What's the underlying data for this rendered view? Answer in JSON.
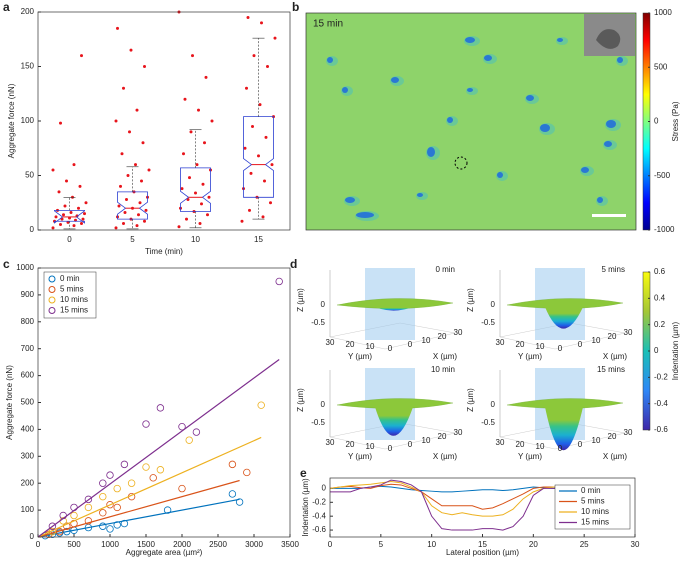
{
  "chart_data": [
    {
      "type": "box",
      "panel_label": "a",
      "ylabel": "Aggregate force (nN)",
      "xlabel": "Time (min)",
      "categories": [
        "0",
        "5",
        "10",
        "15"
      ],
      "ylim": [
        0,
        200
      ],
      "yticks": [
        0,
        50,
        100,
        150,
        200
      ],
      "boxes": [
        {
          "q1": 8,
          "median": 12,
          "q3": 18,
          "low": 1,
          "high": 30
        },
        {
          "q1": 10,
          "median": 20,
          "q3": 35,
          "low": 1,
          "high": 58
        },
        {
          "q1": 17,
          "median": 30,
          "q3": 57,
          "low": 2,
          "high": 92
        },
        {
          "q1": 30,
          "median": 60,
          "q3": 104,
          "low": 10,
          "high": 176
        }
      ],
      "points": [
        [
          2,
          4,
          5,
          6,
          7,
          8,
          9,
          10,
          10,
          11,
          12,
          13,
          14,
          15,
          16,
          18,
          20,
          22,
          25,
          30,
          35,
          40,
          45,
          55,
          60,
          98,
          160
        ],
        [
          2,
          4,
          6,
          8,
          10,
          12,
          14,
          16,
          18,
          20,
          22,
          25,
          28,
          30,
          35,
          40,
          45,
          50,
          55,
          60,
          70,
          80,
          90,
          100,
          110,
          130,
          150,
          165,
          185
        ],
        [
          3,
          6,
          10,
          14,
          17,
          20,
          24,
          28,
          30,
          34,
          38,
          42,
          48,
          55,
          60,
          70,
          80,
          90,
          100,
          110,
          120,
          140,
          160,
          200
        ],
        [
          8,
          12,
          18,
          25,
          30,
          38,
          45,
          52,
          60,
          68,
          75,
          85,
          95,
          104,
          115,
          130,
          150,
          160,
          176,
          190,
          195
        ]
      ],
      "color": "#e8141b",
      "box_color": "#2b3ed1"
    },
    {
      "type": "heatmap",
      "panel_label": "b",
      "label": "15 min",
      "colorbar_label": "Stress (Pa)",
      "clim": [
        -1000,
        1000
      ],
      "cticks": [
        -1000,
        -500,
        0,
        500,
        1000
      ]
    },
    {
      "type": "scatter",
      "panel_label": "c",
      "xlabel": "Aggregate area (µm²)",
      "ylabel": "Aggregate force (nN)",
      "xlim": [
        0,
        3500
      ],
      "ylim": [
        0,
        1000
      ],
      "xticks": [
        0,
        500,
        1000,
        1500,
        2000,
        2500,
        3000,
        3500
      ],
      "yticks": [
        0,
        100,
        200,
        300,
        400,
        500,
        600,
        700,
        800,
        900,
        1000
      ],
      "series": [
        {
          "name": "0 min",
          "color": "#0072bd",
          "x": [
            100,
            200,
            300,
            400,
            500,
            700,
            900,
            1000,
            1100,
            1200,
            1800,
            2700,
            2800
          ],
          "y": [
            5,
            10,
            15,
            20,
            25,
            35,
            40,
            30,
            45,
            50,
            100,
            160,
            130
          ],
          "fit": {
            "x": [
              0,
              2800
            ],
            "y": [
              0,
              140
            ]
          }
        },
        {
          "name": "5 mins",
          "color": "#d95319",
          "x": [
            150,
            300,
            400,
            500,
            700,
            900,
            1000,
            1100,
            1300,
            1600,
            2000,
            2700,
            2900
          ],
          "y": [
            10,
            20,
            40,
            50,
            60,
            90,
            120,
            110,
            150,
            220,
            180,
            270,
            240
          ],
          "fit": {
            "x": [
              0,
              2800
            ],
            "y": [
              0,
              210
            ]
          }
        },
        {
          "name": "10 mins",
          "color": "#edb120",
          "x": [
            200,
            350,
            500,
            700,
            900,
            1100,
            1300,
            1500,
            1700,
            2100,
            3100
          ],
          "y": [
            20,
            60,
            80,
            110,
            150,
            180,
            200,
            260,
            250,
            360,
            490
          ],
          "fit": {
            "x": [
              0,
              3100
            ],
            "y": [
              0,
              370
            ]
          }
        },
        {
          "name": "15 mins",
          "color": "#7e2f8e",
          "x": [
            200,
            350,
            500,
            700,
            900,
            1000,
            1200,
            1500,
            1700,
            2000,
            2200,
            3350
          ],
          "y": [
            40,
            80,
            110,
            140,
            200,
            230,
            270,
            420,
            480,
            410,
            390,
            950
          ],
          "fit": {
            "x": [
              0,
              3350
            ],
            "y": [
              0,
              660
            ]
          }
        }
      ]
    },
    {
      "type": "surface",
      "panel_label": "d",
      "titles": [
        "0 min",
        "5 mins",
        "10 min",
        "15 mins"
      ],
      "zlabel": "Z (µm)",
      "ylabel": "Y (µm)",
      "xlabel": "X (µm)",
      "zticks": [
        -0.5,
        0
      ],
      "yticks": [
        30,
        20,
        10,
        0
      ],
      "xticks": [
        0,
        10,
        20,
        30
      ],
      "colorbar_label": "Indentation (µm)",
      "clim": [
        -0.6,
        0.6
      ],
      "cticks": [
        -0.6,
        -0.4,
        -0.2,
        0,
        0.2,
        0.4,
        0.6
      ]
    },
    {
      "type": "line",
      "panel_label": "e",
      "xlabel": "Lateral position (µm)",
      "ylabel": "Indentation (µm)",
      "xlim": [
        0,
        30
      ],
      "ylim": [
        -0.7,
        0.15
      ],
      "xticks": [
        0,
        5,
        10,
        15,
        20,
        25,
        30
      ],
      "yticks": [
        -0.6,
        -0.4,
        -0.2,
        0
      ],
      "x": [
        0,
        1,
        2,
        3,
        4,
        5,
        6,
        7,
        8,
        9,
        10,
        11,
        12,
        13,
        14,
        15,
        16,
        17,
        18,
        19,
        20,
        21,
        22,
        23,
        24,
        25,
        26,
        27,
        28,
        29
      ],
      "series": [
        {
          "name": "0 min",
          "color": "#0072bd",
          "values": [
            0,
            0,
            0,
            0,
            0.02,
            0.03,
            0.02,
            0,
            -0.02,
            -0.03,
            -0.04,
            -0.05,
            -0.05,
            -0.04,
            -0.03,
            -0.02,
            -0.02,
            -0.03,
            -0.02,
            0,
            0.02,
            0.01,
            0,
            0,
            0,
            0,
            0,
            0,
            0,
            0
          ]
        },
        {
          "name": "5 mins",
          "color": "#d95319",
          "values": [
            0,
            0.02,
            0.03,
            0.01,
            0,
            0.04,
            0.06,
            0.05,
            0,
            -0.05,
            -0.15,
            -0.25,
            -0.25,
            -0.25,
            -0.25,
            -0.3,
            -0.28,
            -0.22,
            -0.15,
            -0.08,
            0,
            0.02,
            0.02,
            0.02,
            0,
            0,
            0.02,
            0.02,
            0,
            0
          ]
        },
        {
          "name": "10 mins",
          "color": "#edb120",
          "values": [
            0,
            0.02,
            0.04,
            0.05,
            0.06,
            0.08,
            0.1,
            0.08,
            0.02,
            -0.05,
            -0.25,
            -0.35,
            -0.38,
            -0.35,
            -0.38,
            -0.4,
            -0.4,
            -0.38,
            -0.3,
            -0.15,
            -0.05,
            0,
            0.02,
            0.02,
            0,
            0,
            0,
            0,
            0,
            0
          ]
        },
        {
          "name": "15 mins",
          "color": "#7e2f8e",
          "values": [
            -0.05,
            -0.05,
            -0.05,
            0,
            0.02,
            0.05,
            0.12,
            0.1,
            0.05,
            -0.05,
            -0.4,
            -0.58,
            -0.6,
            -0.6,
            -0.6,
            -0.58,
            -0.58,
            -0.6,
            -0.55,
            -0.4,
            -0.1,
            0,
            0,
            0.02,
            0,
            0,
            0,
            0,
            0,
            0
          ]
        }
      ]
    }
  ]
}
